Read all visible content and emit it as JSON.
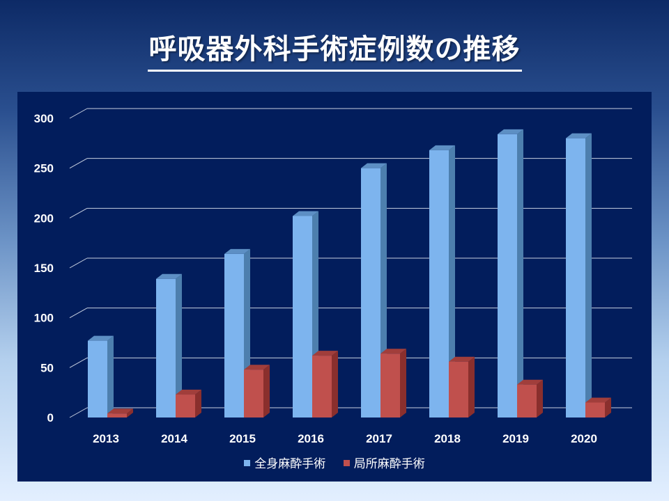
{
  "title": "呼吸器外科手術症例数の推移",
  "colors": {
    "general_front": "#7db4ee",
    "general_side": "#4d7fae",
    "general_top": "#5d8fc4",
    "local_front": "#c0504d",
    "local_side": "#8a2f2d",
    "local_top": "#a13e3b",
    "grid": "#c8d0e0",
    "panel": "#021d5c"
  },
  "chart_data": {
    "type": "bar",
    "categories": [
      "2013",
      "2014",
      "2015",
      "2016",
      "2017",
      "2018",
      "2019",
      "2020"
    ],
    "series": [
      {
        "name": "全身麻酔手術",
        "values": [
          77,
          139,
          164,
          202,
          250,
          268,
          284,
          280
        ]
      },
      {
        "name": "局所麻酔手術",
        "values": [
          4,
          23,
          48,
          62,
          64,
          56,
          33,
          15
        ]
      }
    ],
    "ylim": [
      0,
      300
    ],
    "yticks": [
      "0",
      "50",
      "100",
      "150",
      "200",
      "250",
      "300"
    ],
    "grid": true,
    "legend_position": "bottom"
  }
}
